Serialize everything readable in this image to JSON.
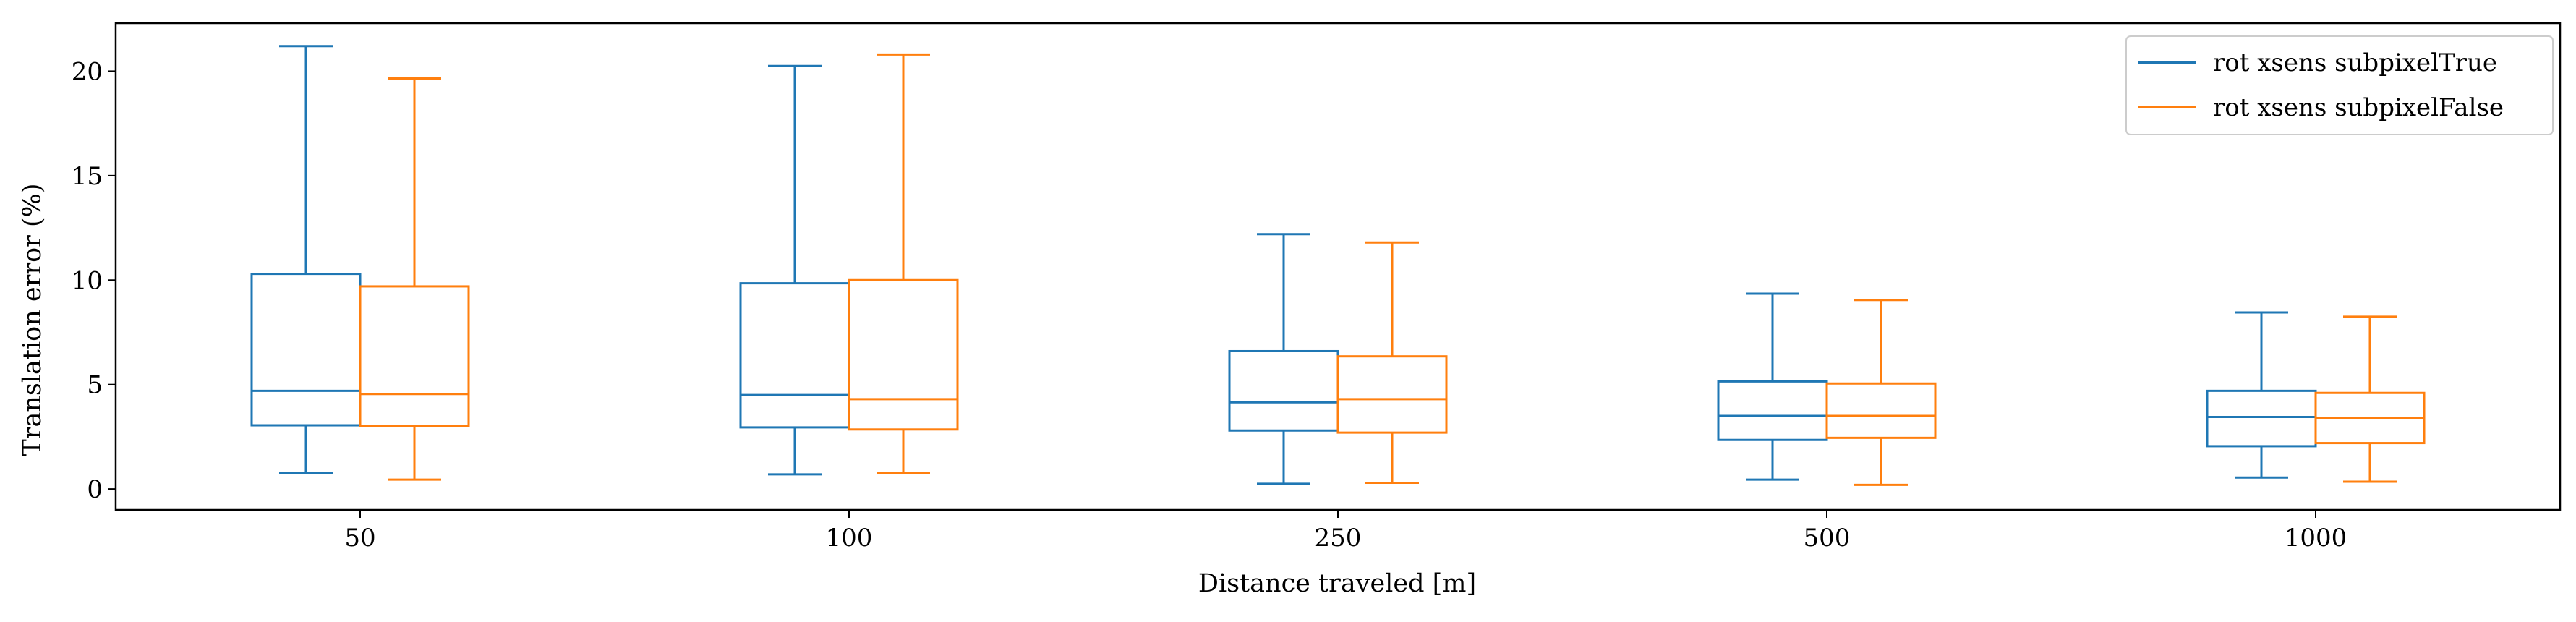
{
  "chart_data": {
    "type": "box",
    "title": "",
    "xlabel": "Distance traveled [m]",
    "ylabel": "Translation error (%)",
    "categories": [
      "50",
      "100",
      "250",
      "500",
      "1000"
    ],
    "ylim": [
      -1.0,
      22.3
    ],
    "yticks": [
      0,
      5,
      10,
      15,
      20
    ],
    "grid": false,
    "legend_position": "top-right",
    "series": [
      {
        "name": "rot xsens subpixelTrue",
        "color": "#1f77b4",
        "boxes": [
          {
            "whislo": 0.75,
            "q1": 3.05,
            "med": 4.7,
            "q3": 10.3,
            "whishi": 21.2
          },
          {
            "whislo": 0.7,
            "q1": 2.95,
            "med": 4.5,
            "q3": 9.85,
            "whishi": 20.25
          },
          {
            "whislo": 0.25,
            "q1": 2.8,
            "med": 4.15,
            "q3": 6.6,
            "whishi": 12.2
          },
          {
            "whislo": 0.45,
            "q1": 2.35,
            "med": 3.5,
            "q3": 5.15,
            "whishi": 9.35
          },
          {
            "whislo": 0.55,
            "q1": 2.05,
            "med": 3.45,
            "q3": 4.7,
            "whishi": 8.45
          }
        ]
      },
      {
        "name": "rot xsens subpixelFalse",
        "color": "#ff7f0e",
        "boxes": [
          {
            "whislo": 0.45,
            "q1": 3.0,
            "med": 4.55,
            "q3": 9.7,
            "whishi": 19.65
          },
          {
            "whislo": 0.75,
            "q1": 2.85,
            "med": 4.3,
            "q3": 10.0,
            "whishi": 20.8
          },
          {
            "whislo": 0.3,
            "q1": 2.7,
            "med": 4.3,
            "q3": 6.35,
            "whishi": 11.8
          },
          {
            "whislo": 0.2,
            "q1": 2.45,
            "med": 3.5,
            "q3": 5.05,
            "whishi": 9.05
          },
          {
            "whislo": 0.35,
            "q1": 2.2,
            "med": 3.4,
            "q3": 4.6,
            "whishi": 8.25
          }
        ]
      }
    ]
  }
}
